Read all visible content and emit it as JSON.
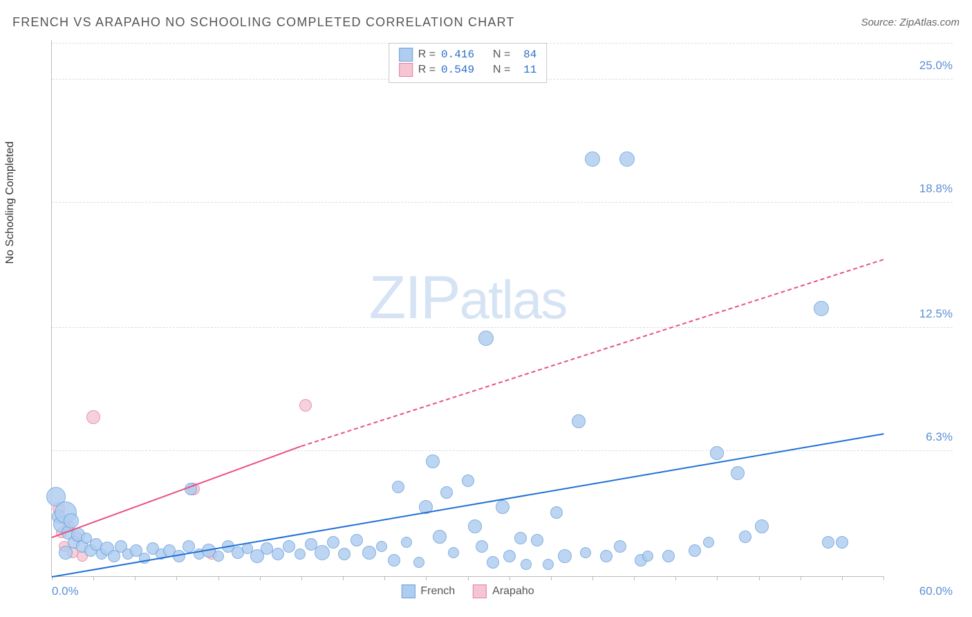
{
  "header": {
    "title": "FRENCH VS ARAPAHO NO SCHOOLING COMPLETED CORRELATION CHART",
    "source": "Source: ZipAtlas.com"
  },
  "chart": {
    "type": "scatter",
    "ylabel": "No Schooling Completed",
    "xlim": [
      0,
      60
    ],
    "ylim": [
      0,
      27
    ],
    "xlabels": {
      "min": "0.0%",
      "max": "60.0%"
    },
    "yticks": [
      {
        "v": 6.3,
        "label": "6.3%"
      },
      {
        "v": 12.5,
        "label": "12.5%"
      },
      {
        "v": 18.8,
        "label": "18.8%"
      },
      {
        "v": 25.0,
        "label": "25.0%"
      }
    ],
    "xticks": [
      0,
      3,
      6,
      9,
      12,
      15,
      18,
      21,
      24,
      27,
      30,
      33,
      36,
      39,
      42,
      45,
      48,
      51,
      54,
      57,
      60
    ],
    "watermark": "ZIPatlas",
    "series": {
      "french": {
        "label": "French",
        "fill": "#aecdf0",
        "stroke": "#6a9fd8",
        "trend_color": "#1f6fd6",
        "R": "0.416",
        "N": "84",
        "trend": {
          "x1": 0,
          "y1": 0.0,
          "x2": 60,
          "y2": 7.2
        },
        "points": [
          {
            "x": 0.3,
            "y": 4.0,
            "r": 14
          },
          {
            "x": 0.5,
            "y": 3.0,
            "r": 10
          },
          {
            "x": 0.7,
            "y": 2.6,
            "r": 12
          },
          {
            "x": 1.0,
            "y": 3.2,
            "r": 16
          },
          {
            "x": 1.2,
            "y": 2.2,
            "r": 10
          },
          {
            "x": 1.4,
            "y": 2.8,
            "r": 11
          },
          {
            "x": 1.6,
            "y": 1.7,
            "r": 9
          },
          {
            "x": 1.9,
            "y": 2.1,
            "r": 10
          },
          {
            "x": 2.2,
            "y": 1.5,
            "r": 9
          },
          {
            "x": 2.5,
            "y": 1.9,
            "r": 8
          },
          {
            "x": 2.8,
            "y": 1.3,
            "r": 9
          },
          {
            "x": 3.2,
            "y": 1.6,
            "r": 9
          },
          {
            "x": 3.6,
            "y": 1.1,
            "r": 8
          },
          {
            "x": 4.0,
            "y": 1.4,
            "r": 10
          },
          {
            "x": 4.5,
            "y": 1.0,
            "r": 9
          },
          {
            "x": 5.0,
            "y": 1.5,
            "r": 9
          },
          {
            "x": 5.5,
            "y": 1.1,
            "r": 8
          },
          {
            "x": 6.1,
            "y": 1.3,
            "r": 9
          },
          {
            "x": 6.7,
            "y": 0.9,
            "r": 8
          },
          {
            "x": 7.3,
            "y": 1.4,
            "r": 9
          },
          {
            "x": 7.9,
            "y": 1.1,
            "r": 8
          },
          {
            "x": 8.5,
            "y": 1.3,
            "r": 9
          },
          {
            "x": 9.2,
            "y": 1.0,
            "r": 9
          },
          {
            "x": 9.9,
            "y": 1.5,
            "r": 9
          },
          {
            "x": 10.6,
            "y": 1.1,
            "r": 8
          },
          {
            "x": 11.3,
            "y": 1.3,
            "r": 10
          },
          {
            "x": 12.0,
            "y": 1.0,
            "r": 8
          },
          {
            "x": 12.7,
            "y": 1.5,
            "r": 9
          },
          {
            "x": 13.4,
            "y": 1.2,
            "r": 9
          },
          {
            "x": 14.1,
            "y": 1.4,
            "r": 8
          },
          {
            "x": 14.8,
            "y": 1.0,
            "r": 10
          },
          {
            "x": 15.5,
            "y": 1.4,
            "r": 9
          },
          {
            "x": 16.3,
            "y": 1.1,
            "r": 9
          },
          {
            "x": 17.1,
            "y": 1.5,
            "r": 9
          },
          {
            "x": 17.9,
            "y": 1.1,
            "r": 8
          },
          {
            "x": 18.7,
            "y": 1.6,
            "r": 9
          },
          {
            "x": 19.5,
            "y": 1.2,
            "r": 11
          },
          {
            "x": 20.3,
            "y": 1.7,
            "r": 9
          },
          {
            "x": 21.1,
            "y": 1.1,
            "r": 9
          },
          {
            "x": 22.0,
            "y": 1.8,
            "r": 9
          },
          {
            "x": 22.9,
            "y": 1.2,
            "r": 10
          },
          {
            "x": 23.8,
            "y": 1.5,
            "r": 8
          },
          {
            "x": 24.7,
            "y": 0.8,
            "r": 9
          },
          {
            "x": 25.6,
            "y": 1.7,
            "r": 8
          },
          {
            "x": 25.0,
            "y": 4.5,
            "r": 9
          },
          {
            "x": 26.5,
            "y": 0.7,
            "r": 8
          },
          {
            "x": 27.0,
            "y": 3.5,
            "r": 10
          },
          {
            "x": 27.5,
            "y": 5.8,
            "r": 10
          },
          {
            "x": 28.0,
            "y": 2.0,
            "r": 10
          },
          {
            "x": 28.5,
            "y": 4.2,
            "r": 9
          },
          {
            "x": 29.0,
            "y": 1.2,
            "r": 8
          },
          {
            "x": 30.0,
            "y": 4.8,
            "r": 9
          },
          {
            "x": 30.5,
            "y": 2.5,
            "r": 10
          },
          {
            "x": 31.0,
            "y": 1.5,
            "r": 9
          },
          {
            "x": 31.3,
            "y": 12.0,
            "r": 11
          },
          {
            "x": 31.8,
            "y": 0.7,
            "r": 9
          },
          {
            "x": 32.5,
            "y": 3.5,
            "r": 10
          },
          {
            "x": 33.0,
            "y": 1.0,
            "r": 9
          },
          {
            "x": 33.8,
            "y": 1.9,
            "r": 9
          },
          {
            "x": 34.2,
            "y": 0.6,
            "r": 8
          },
          {
            "x": 35.0,
            "y": 1.8,
            "r": 9
          },
          {
            "x": 35.8,
            "y": 0.6,
            "r": 8
          },
          {
            "x": 36.4,
            "y": 3.2,
            "r": 9
          },
          {
            "x": 37.0,
            "y": 1.0,
            "r": 10
          },
          {
            "x": 38.0,
            "y": 7.8,
            "r": 10
          },
          {
            "x": 38.5,
            "y": 1.2,
            "r": 8
          },
          {
            "x": 39.0,
            "y": 21.0,
            "r": 11
          },
          {
            "x": 40.0,
            "y": 1.0,
            "r": 9
          },
          {
            "x": 41.0,
            "y": 1.5,
            "r": 9
          },
          {
            "x": 41.5,
            "y": 21.0,
            "r": 11
          },
          {
            "x": 42.5,
            "y": 0.8,
            "r": 9
          },
          {
            "x": 43.0,
            "y": 1.0,
            "r": 8
          },
          {
            "x": 44.5,
            "y": 1.0,
            "r": 9
          },
          {
            "x": 46.4,
            "y": 1.3,
            "r": 9
          },
          {
            "x": 47.4,
            "y": 1.7,
            "r": 8
          },
          {
            "x": 48.0,
            "y": 6.2,
            "r": 10
          },
          {
            "x": 49.5,
            "y": 5.2,
            "r": 10
          },
          {
            "x": 50.0,
            "y": 2.0,
            "r": 9
          },
          {
            "x": 51.2,
            "y": 2.5,
            "r": 10
          },
          {
            "x": 55.5,
            "y": 13.5,
            "r": 11
          },
          {
            "x": 56.0,
            "y": 1.7,
            "r": 9
          },
          {
            "x": 57.0,
            "y": 1.7,
            "r": 9
          },
          {
            "x": 10.0,
            "y": 4.4,
            "r": 9
          },
          {
            "x": 1.0,
            "y": 1.2,
            "r": 10
          }
        ]
      },
      "arapaho": {
        "label": "Arapaho",
        "fill": "#f5c6d2",
        "stroke": "#e37fa0",
        "trend_color": "#e8517f",
        "R": "0.549",
        "N": "11",
        "trend_solid": {
          "x1": 0,
          "y1": 2.0,
          "x2": 18,
          "y2": 6.6
        },
        "trend_dash": {
          "x1": 18,
          "y1": 6.6,
          "x2": 60,
          "y2": 16.0
        },
        "points": [
          {
            "x": 0.5,
            "y": 3.4,
            "r": 9
          },
          {
            "x": 0.7,
            "y": 2.2,
            "r": 8
          },
          {
            "x": 0.9,
            "y": 1.5,
            "r": 8
          },
          {
            "x": 1.2,
            "y": 2.5,
            "r": 9
          },
          {
            "x": 1.5,
            "y": 1.2,
            "r": 8
          },
          {
            "x": 1.8,
            "y": 2.0,
            "r": 8
          },
          {
            "x": 2.2,
            "y": 1.0,
            "r": 8
          },
          {
            "x": 3.0,
            "y": 8.0,
            "r": 10
          },
          {
            "x": 10.2,
            "y": 4.4,
            "r": 9
          },
          {
            "x": 11.5,
            "y": 1.1,
            "r": 8
          },
          {
            "x": 18.3,
            "y": 8.6,
            "r": 9
          }
        ]
      }
    },
    "legend_bottom": [
      "french",
      "arapaho"
    ]
  }
}
